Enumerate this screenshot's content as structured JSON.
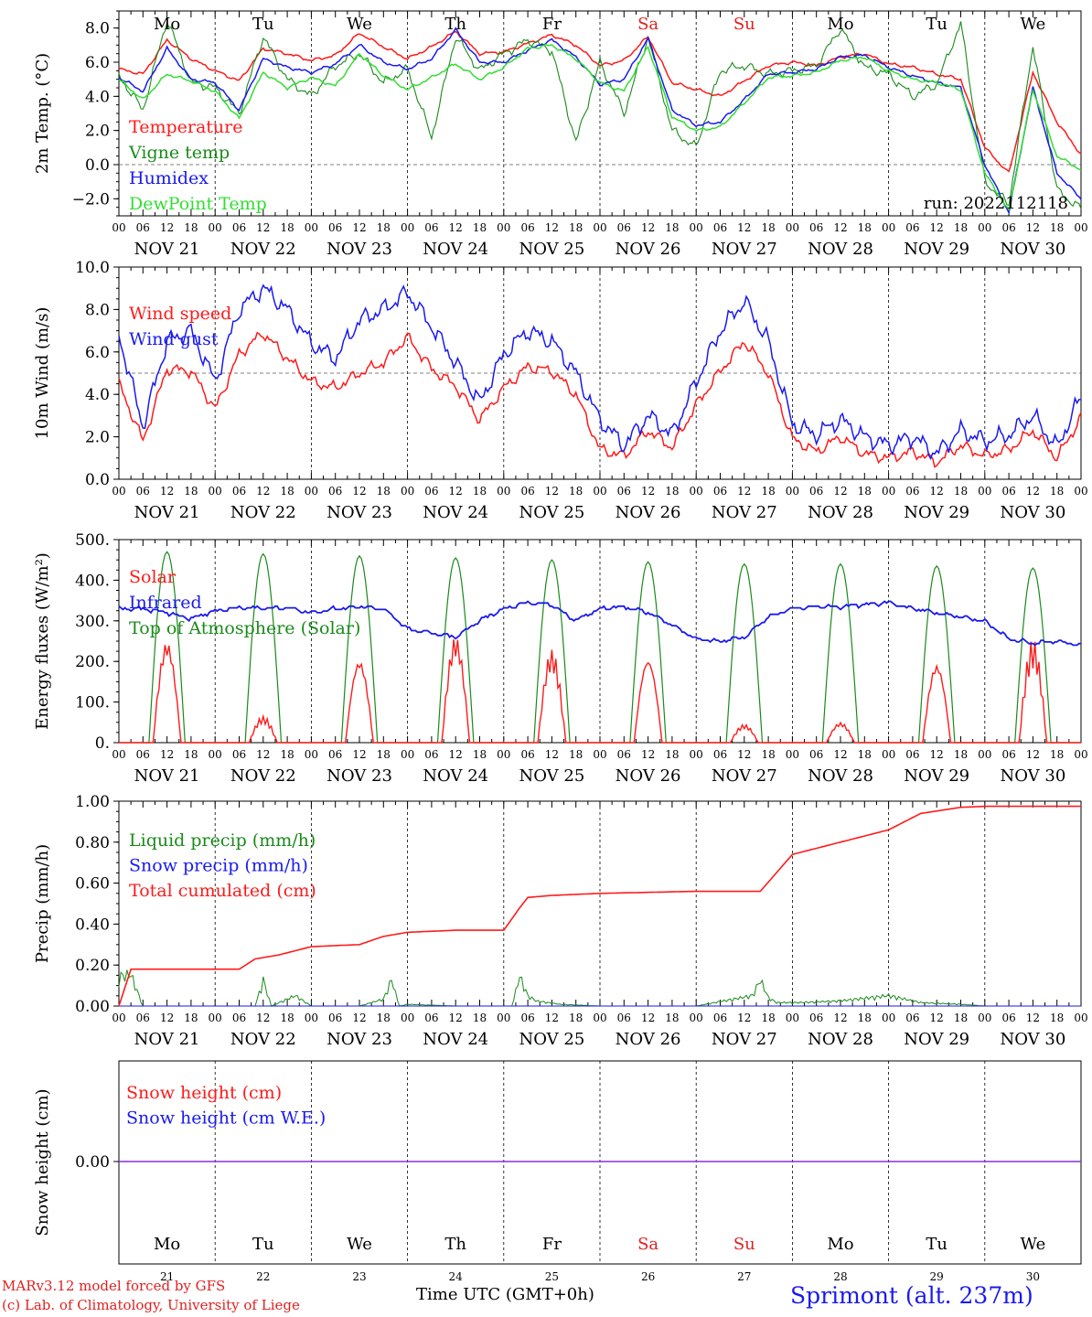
{
  "footer": {
    "model": "MARv3.12 model forced by GFS",
    "credit": "(c) Lab. of Climatology, University of Liege",
    "time_label": "Time UTC (GMT+0h)",
    "station": "Sprimont (alt. 237m)"
  },
  "axis": {
    "hour_ticks": [
      "00",
      "06",
      "12",
      "18"
    ],
    "final_tick": "00",
    "dates": [
      "NOV 21",
      "NOV 22",
      "NOV 23",
      "NOV 24",
      "NOV 25",
      "NOV 26",
      "NOV 27",
      "NOV 28",
      "NOV 29",
      "NOV 30"
    ],
    "weekdays": [
      "Mo",
      "Tu",
      "We",
      "Th",
      "Fr",
      "Sa",
      "Su",
      "Mo",
      "Tu",
      "We"
    ],
    "weekday_colors": [
      "#000000",
      "#000000",
      "#000000",
      "#000000",
      "#000000",
      "#e02020",
      "#e02020",
      "#000000",
      "#000000",
      "#000000"
    ],
    "day_numbers": [
      "21",
      "22",
      "23",
      "24",
      "25",
      "26",
      "27",
      "28",
      "29",
      "30"
    ]
  },
  "colors": {
    "red": "#ff1a1a",
    "darkgreen": "#1a8a1a",
    "blue": "#1a1aee",
    "lightgreen": "#33dd33",
    "purple": "#8a2be2"
  },
  "chart_data": [
    {
      "type": "line",
      "ylabel": "2m Temp. (°C)",
      "ylim": [
        -3,
        9
      ],
      "yticks": [
        -2,
        0,
        2,
        4,
        6,
        8
      ],
      "ytick_labels": [
        "−2.0",
        "0.0",
        "2.0",
        "4.0",
        "6.0",
        "8.0"
      ],
      "reference_line": 0,
      "annotation": "run: 2022112118",
      "x_unit": "hours since NOV 21 00 UTC",
      "series": [
        {
          "name": "Temperature",
          "color": "red",
          "x": [
            0,
            6,
            12,
            18,
            24,
            30,
            36,
            42,
            48,
            54,
            60,
            66,
            72,
            78,
            84,
            90,
            96,
            102,
            108,
            114,
            120,
            126,
            132,
            138,
            144,
            150,
            156,
            162,
            168,
            174,
            180,
            186,
            192,
            198,
            204,
            210,
            216,
            222,
            228,
            234,
            240
          ],
          "y": [
            5.6,
            5.3,
            7.3,
            6.2,
            5.5,
            4.9,
            6.8,
            6.5,
            6.1,
            6.4,
            7.7,
            6.9,
            6.2,
            6.9,
            7.8,
            6.5,
            6.6,
            7.1,
            7.6,
            7.0,
            5.8,
            6.1,
            7.5,
            4.8,
            4.4,
            4.0,
            4.9,
            5.8,
            6.0,
            5.8,
            6.3,
            6.5,
            5.9,
            5.7,
            5.3,
            5.0,
            1.0,
            -0.5,
            5.4,
            2.5,
            0.6
          ]
        },
        {
          "name": "Vigne temp",
          "color": "darkgreen",
          "x": [
            0,
            6,
            12,
            18,
            24,
            30,
            36,
            42,
            48,
            54,
            60,
            66,
            72,
            78,
            84,
            90,
            96,
            102,
            108,
            114,
            120,
            126,
            132,
            138,
            144,
            150,
            156,
            162,
            168,
            174,
            180,
            186,
            192,
            198,
            204,
            210,
            216,
            222,
            228,
            234,
            240
          ],
          "y": [
            5.2,
            3.2,
            8.5,
            4.8,
            4.5,
            3.0,
            7.5,
            5.0,
            4.0,
            5.8,
            6.5,
            4.8,
            5.6,
            1.6,
            7.5,
            5.5,
            6.5,
            7.3,
            6.7,
            1.3,
            6.0,
            3.0,
            7.5,
            2.0,
            1.0,
            5.5,
            5.8,
            5.3,
            5.5,
            5.8,
            8.0,
            5.7,
            5.3,
            4.0,
            4.7,
            8.3,
            -1.0,
            -2.3,
            7.0,
            -1.5,
            -2.6
          ]
        },
        {
          "name": "Humidex",
          "color": "blue",
          "x": [
            0,
            6,
            12,
            18,
            24,
            30,
            36,
            42,
            48,
            54,
            60,
            66,
            72,
            78,
            84,
            90,
            96,
            102,
            108,
            114,
            120,
            126,
            132,
            138,
            144,
            150,
            156,
            162,
            168,
            174,
            180,
            186,
            192,
            198,
            204,
            210,
            216,
            222,
            228,
            234,
            240
          ],
          "y": [
            5.1,
            4.3,
            6.8,
            5.0,
            4.8,
            3.2,
            6.2,
            5.7,
            5.4,
            5.9,
            7.0,
            6.0,
            5.6,
            6.2,
            7.9,
            6.0,
            6.0,
            6.7,
            7.3,
            6.3,
            4.7,
            5.0,
            7.4,
            3.2,
            2.3,
            2.5,
            3.8,
            5.3,
            5.4,
            5.6,
            6.3,
            6.4,
            5.7,
            5.2,
            4.8,
            4.5,
            0.0,
            -2.8,
            4.5,
            -0.5,
            -2.0
          ]
        },
        {
          "name": "DewPoint Temp",
          "color": "lightgreen",
          "x": [
            0,
            6,
            12,
            18,
            24,
            30,
            36,
            42,
            48,
            54,
            60,
            66,
            72,
            78,
            84,
            90,
            96,
            102,
            108,
            114,
            120,
            126,
            132,
            138,
            144,
            150,
            156,
            162,
            168,
            174,
            180,
            186,
            192,
            198,
            204,
            210,
            216,
            222,
            228,
            234,
            240
          ],
          "y": [
            5.0,
            3.8,
            5.3,
            4.9,
            4.3,
            2.7,
            5.4,
            4.5,
            5.1,
            4.6,
            6.5,
            5.2,
            4.4,
            5.1,
            5.9,
            5.0,
            5.7,
            6.8,
            7.0,
            6.2,
            4.8,
            4.3,
            6.9,
            2.8,
            2.0,
            2.2,
            3.6,
            5.1,
            5.2,
            5.4,
            6.1,
            6.3,
            5.5,
            5.0,
            4.8,
            4.4,
            -0.5,
            -2.7,
            4.4,
            0.5,
            -0.3
          ]
        }
      ],
      "markers": {
        "weekday_row": true
      }
    },
    {
      "type": "line",
      "ylabel": "10m Wind (m/s)",
      "ylim": [
        0,
        10
      ],
      "yticks": [
        0,
        2,
        4,
        6,
        8,
        10
      ],
      "ytick_labels": [
        "0.0",
        "2.0",
        "4.0",
        "6.0",
        "8.0",
        "10.0"
      ],
      "reference_line": 5,
      "series": [
        {
          "name": "Wind speed",
          "color": "red",
          "x": [
            0,
            6,
            12,
            18,
            24,
            30,
            36,
            42,
            48,
            54,
            60,
            66,
            72,
            78,
            84,
            90,
            96,
            102,
            108,
            114,
            120,
            126,
            132,
            138,
            144,
            150,
            156,
            162,
            168,
            174,
            180,
            186,
            192,
            198,
            204,
            210,
            216,
            222,
            228,
            234,
            240
          ],
          "y": [
            4.5,
            1.8,
            5.2,
            5.1,
            3.3,
            5.9,
            6.9,
            5.7,
            4.6,
            4.3,
            5.0,
            5.5,
            6.7,
            5.2,
            4.4,
            2.8,
            4.3,
            5.3,
            5.1,
            4.0,
            1.4,
            1.1,
            2.3,
            1.5,
            3.5,
            5.1,
            6.5,
            5.0,
            1.9,
            1.3,
            2.0,
            1.2,
            1.0,
            1.3,
            0.8,
            1.6,
            1.1,
            1.4,
            2.3,
            1.0,
            2.9
          ]
        },
        {
          "name": "Wind gust",
          "color": "blue",
          "x": [
            0,
            6,
            12,
            18,
            24,
            30,
            36,
            42,
            48,
            54,
            60,
            66,
            72,
            78,
            84,
            90,
            96,
            102,
            108,
            114,
            120,
            126,
            132,
            138,
            144,
            150,
            156,
            162,
            168,
            174,
            180,
            186,
            192,
            198,
            204,
            210,
            216,
            222,
            228,
            234,
            240
          ],
          "y": [
            6.8,
            2.5,
            6.5,
            7.0,
            4.6,
            8.0,
            9.0,
            8.0,
            6.4,
            5.7,
            7.5,
            8.0,
            8.8,
            7.2,
            5.5,
            3.6,
            5.9,
            7.0,
            6.5,
            5.0,
            2.8,
            1.6,
            3.0,
            2.1,
            4.6,
            7.0,
            8.4,
            6.5,
            2.6,
            2.1,
            2.8,
            2.0,
            1.6,
            2.0,
            1.2,
            2.3,
            1.8,
            2.1,
            3.0,
            1.5,
            3.9
          ]
        }
      ]
    },
    {
      "type": "line",
      "ylabel": "Energy fluxes (W/m²)",
      "ylim": [
        0,
        500
      ],
      "yticks": [
        0,
        100,
        200,
        300,
        400,
        500
      ],
      "ytick_labels": [
        "0.",
        "100.",
        "200.",
        "300.",
        "400.",
        "500."
      ],
      "series": [
        {
          "name": "Solar",
          "color": "red",
          "peaks": [
            255,
            65,
            210,
            265,
            230,
            215,
            45,
            50,
            200,
            255
          ]
        },
        {
          "name": "Infrared",
          "color": "blue",
          "x": [
            0,
            6,
            12,
            18,
            24,
            30,
            36,
            42,
            48,
            54,
            60,
            66,
            72,
            78,
            84,
            90,
            96,
            102,
            108,
            114,
            120,
            126,
            132,
            138,
            144,
            150,
            156,
            162,
            168,
            174,
            180,
            186,
            192,
            198,
            204,
            210,
            216,
            222,
            228,
            234,
            240
          ],
          "y": [
            330,
            330,
            320,
            305,
            325,
            332,
            332,
            332,
            320,
            330,
            335,
            330,
            280,
            270,
            260,
            300,
            330,
            345,
            340,
            300,
            330,
            335,
            320,
            290,
            255,
            250,
            260,
            310,
            330,
            335,
            335,
            340,
            345,
            330,
            320,
            310,
            300,
            255,
            245,
            250,
            240
          ]
        },
        {
          "name": "Top of Atmosphere (Solar)",
          "color": "darkgreen",
          "peaks": [
            470,
            465,
            460,
            455,
            450,
            445,
            440,
            440,
            435,
            430
          ]
        }
      ],
      "daylight": {
        "rise_hour": 7.5,
        "set_hour": 16.5
      }
    },
    {
      "type": "line",
      "ylabel": "Precip (mm/h)",
      "ylim": [
        0,
        1.0
      ],
      "yticks": [
        0,
        0.2,
        0.4,
        0.6,
        0.8,
        1.0
      ],
      "ytick_labels": [
        "0.00",
        "0.20",
        "0.40",
        "0.60",
        "0.80",
        "1.00"
      ],
      "series": [
        {
          "name": "Liquid precip (mm/h)",
          "color": "darkgreen",
          "x": [
            0,
            3,
            6,
            9,
            12,
            24,
            34,
            36,
            38,
            44,
            48,
            60,
            66,
            68,
            70,
            72,
            84,
            98,
            100,
            102,
            104,
            110,
            120,
            144,
            158,
            160,
            162,
            164,
            170,
            180,
            192,
            200,
            210,
            216,
            240
          ],
          "y": [
            0.17,
            0.18,
            0.0,
            0.0,
            0.0,
            0.0,
            0.0,
            0.15,
            0.0,
            0.06,
            0.0,
            0.0,
            0.04,
            0.15,
            0.0,
            0.01,
            0.0,
            0.0,
            0.17,
            0.06,
            0.03,
            0.01,
            0.0,
            0.0,
            0.06,
            0.15,
            0.05,
            0.02,
            0.02,
            0.03,
            0.06,
            0.02,
            0.01,
            0.0,
            0.0
          ]
        },
        {
          "name": "Snow precip (mm/h)",
          "color": "blue",
          "x": [
            0,
            240
          ],
          "y": [
            0,
            0
          ]
        },
        {
          "name": "Total cumulated (cm)",
          "color": "red",
          "x": [
            0,
            3,
            30,
            34,
            40,
            48,
            60,
            66,
            72,
            84,
            96,
            100,
            102,
            108,
            120,
            144,
            160,
            168,
            174,
            180,
            192,
            200,
            210,
            216,
            240
          ],
          "y": [
            0.0,
            0.18,
            0.18,
            0.23,
            0.25,
            0.29,
            0.3,
            0.34,
            0.36,
            0.37,
            0.37,
            0.48,
            0.53,
            0.54,
            0.55,
            0.56,
            0.56,
            0.74,
            0.77,
            0.8,
            0.86,
            0.94,
            0.97,
            0.975,
            0.975
          ]
        }
      ]
    },
    {
      "type": "line",
      "ylabel": "Snow height (cm)",
      "ytick_labels": [
        "0.00"
      ],
      "series": [
        {
          "name": "Snow height (cm)",
          "color": "red",
          "x": [
            0,
            240
          ],
          "y": [
            0,
            0
          ]
        },
        {
          "name": "Snow height (cm W.E.)",
          "color": "blue",
          "x": [
            0,
            240
          ],
          "y": [
            0,
            0
          ]
        }
      ]
    }
  ]
}
